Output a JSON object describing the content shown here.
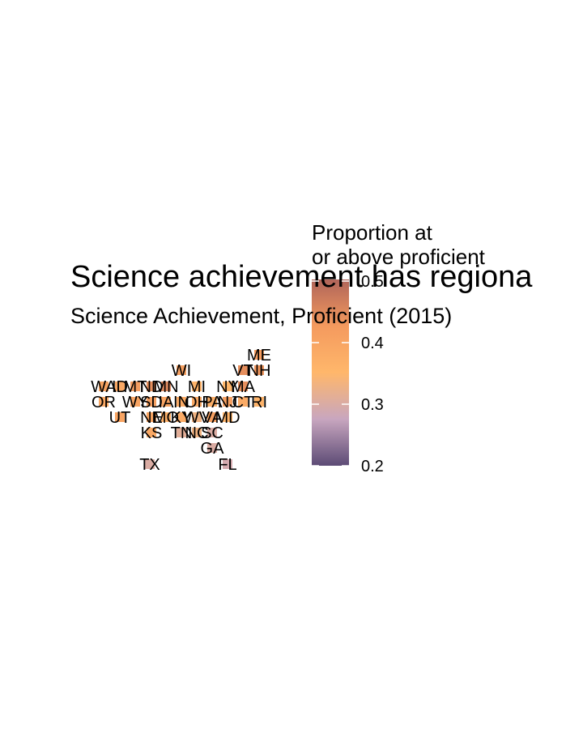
{
  "chart_data": {
    "type": "tilemap",
    "title": "Science achievement has regiona",
    "subtitle": "Science Achievement, Proficient (2015)",
    "legend_title": [
      "Proportion at",
      "or above proficient"
    ],
    "categories": [
      "ME",
      "WI",
      "VT",
      "NH",
      "WA",
      "ID",
      "MT",
      "ND",
      "MN",
      "MI",
      "NY",
      "MA",
      "OR",
      "WY",
      "SD",
      "IA",
      "IN",
      "OH",
      "PA",
      "NJ",
      "CT",
      "RI",
      "UT",
      "NE",
      "MO",
      "KY",
      "WV",
      "VA",
      "MD",
      "KS",
      "TN",
      "NC",
      "SC",
      "GA",
      "TX",
      "FL"
    ],
    "values": [
      0.42,
      0.41,
      0.44,
      0.43,
      0.4,
      0.39,
      0.42,
      0.44,
      0.45,
      0.36,
      0.35,
      0.44,
      0.39,
      0.4,
      0.41,
      0.4,
      0.38,
      0.39,
      0.37,
      0.41,
      0.38,
      0.36,
      0.4,
      0.4,
      0.37,
      0.38,
      0.33,
      0.41,
      0.36,
      0.39,
      0.31,
      0.33,
      0.3,
      0.3,
      0.3,
      0.29
    ],
    "colors": [
      "#5c4b75",
      "#c8a6bf",
      "#ffb76b",
      "#f49a5e",
      "#b0655a"
    ],
    "ylim": [
      0.2,
      0.5
    ],
    "yticks": [
      0.2,
      0.3,
      0.4,
      0.5
    ]
  }
}
